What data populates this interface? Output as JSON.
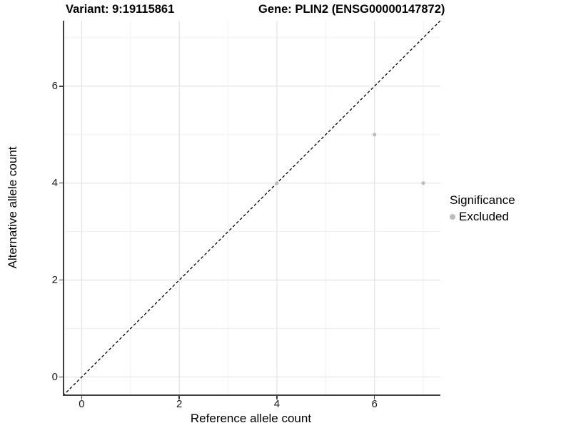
{
  "header": {
    "title_left": "Variant: 9:19115861",
    "title_right": "Gene: PLIN2 (ENSG00000147872)"
  },
  "x_axis": {
    "label": "Reference allele count",
    "tick_labels": [
      "0",
      "2",
      "4",
      "6"
    ],
    "tick_values": [
      0,
      2,
      4,
      6
    ],
    "range": [
      -0.358,
      7.35
    ]
  },
  "y_axis": {
    "label": "Alternative allele count",
    "tick_labels": [
      "0",
      "2",
      "4",
      "6"
    ],
    "tick_values": [
      0,
      2,
      4,
      6
    ],
    "range": [
      -0.36,
      7.35
    ]
  },
  "legend": {
    "title": "Significance",
    "items": [
      {
        "label": "Excluded",
        "color": "#bcbcbc"
      }
    ]
  },
  "chart_data": {
    "type": "scatter",
    "title": "Variant: 9:19115861 / Gene: PLIN2 (ENSG00000147872)",
    "xlabel": "Reference allele count",
    "ylabel": "Alternative allele count",
    "xlim": [
      -0.358,
      7.35
    ],
    "ylim": [
      -0.36,
      7.35
    ],
    "x_ticks": [
      0,
      2,
      4,
      6
    ],
    "y_ticks": [
      0,
      2,
      4,
      6
    ],
    "grid": {
      "major": [
        0,
        2,
        4,
        6
      ],
      "minor": [
        1,
        3,
        5,
        7
      ],
      "major_color": "#e3e3e3",
      "minor_color": "#f0f0f0"
    },
    "series": [
      {
        "name": "Excluded",
        "color": "#bcbcbc",
        "marker_radius": 2.6,
        "points": [
          [
            4,
            4
          ],
          [
            6,
            5
          ],
          [
            7,
            4
          ]
        ]
      }
    ],
    "reference_line": {
      "type": "identity",
      "color": "#000000",
      "dash": [
        4,
        3
      ],
      "width": 1.3
    },
    "legend_position": "right"
  },
  "colors": {
    "axis_line": "#3f3f3f",
    "tick_text": "#1a1a1a",
    "background": "#ffffff"
  }
}
